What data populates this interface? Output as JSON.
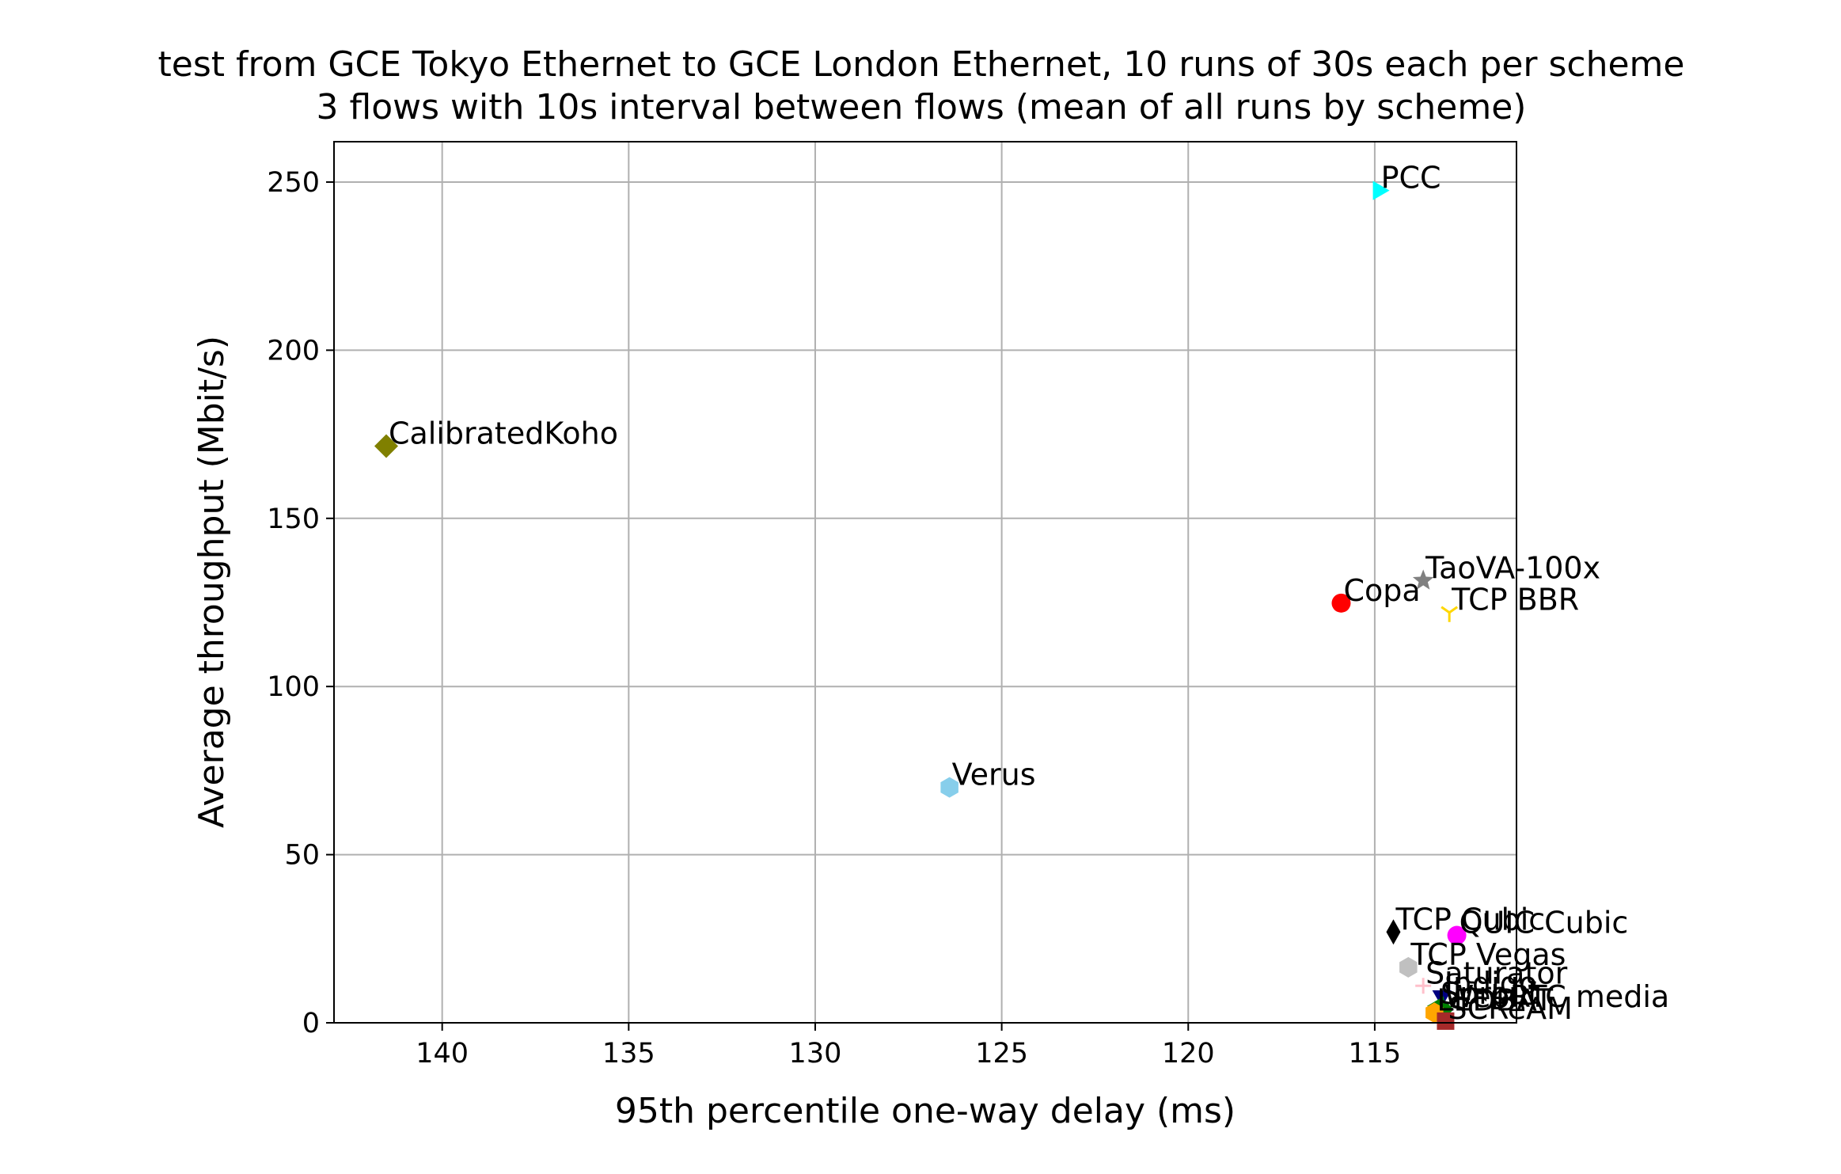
{
  "chart_data": {
    "type": "scatter",
    "title": "test from GCE Tokyo Ethernet to GCE London Ethernet, 10 runs of 30s each per scheme",
    "subtitle": "3 flows with 10s interval between flows (mean of all runs by scheme)",
    "xlabel": "95th percentile one-way delay (ms)",
    "ylabel": "Average throughput (Mbit/s)",
    "x_inverted": true,
    "xlim": [
      142.9,
      111.2
    ],
    "ylim": [
      0,
      262
    ],
    "xticks": [
      140,
      135,
      130,
      125,
      120,
      115
    ],
    "yticks": [
      0,
      50,
      100,
      150,
      200,
      250
    ],
    "grid": true,
    "points": [
      {
        "name": "PCC",
        "x": 114.9,
        "y": 247.5,
        "marker": "triangle-right",
        "color": "#00ffff"
      },
      {
        "name": "CalibratedKoho",
        "x": 141.5,
        "y": 171.5,
        "marker": "diamond",
        "color": "#808000"
      },
      {
        "name": "TaoVA-100x",
        "x": 113.7,
        "y": 131.5,
        "marker": "star",
        "color": "#808080"
      },
      {
        "name": "Copa",
        "x": 115.9,
        "y": 124.8,
        "marker": "circle",
        "color": "#ff0000"
      },
      {
        "name": "TCP BBR",
        "x": 113.0,
        "y": 122.0,
        "marker": "tri-down",
        "color": "#ffd700"
      },
      {
        "name": "Verus",
        "x": 126.4,
        "y": 70.0,
        "marker": "hexagon",
        "color": "#87ceeb"
      },
      {
        "name": "TCP Cubic",
        "x": 114.5,
        "y": 27.0,
        "marker": "thin-diamond",
        "color": "#000000"
      },
      {
        "name": "QUIC Cubic",
        "x": 112.8,
        "y": 26.0,
        "marker": "circle",
        "color": "#ff00ff"
      },
      {
        "name": "TCP Vegas",
        "x": 114.1,
        "y": 16.5,
        "marker": "hexagon",
        "color": "#c0c0c0"
      },
      {
        "name": "Saturator",
        "x": 113.7,
        "y": 11.0,
        "marker": "plus",
        "color": "#ffc0cb"
      },
      {
        "name": "Indigo",
        "x": 113.2,
        "y": 8.0,
        "marker": "triangle-down",
        "color": "#000080"
      },
      {
        "name": "Sprout",
        "x": 113.3,
        "y": 5.0,
        "marker": "triangle-left",
        "color": "#008000"
      },
      {
        "name": "WebRTC media",
        "x": 113.2,
        "y": 4.0,
        "marker": "diamond",
        "color": "#008000"
      },
      {
        "name": "LEDBAT",
        "x": 113.4,
        "y": 3.0,
        "marker": "hexagon",
        "color": "#ffa500"
      },
      {
        "name": "SCReAM",
        "x": 113.1,
        "y": 0.5,
        "marker": "square",
        "color": "#a52a2a"
      }
    ]
  }
}
